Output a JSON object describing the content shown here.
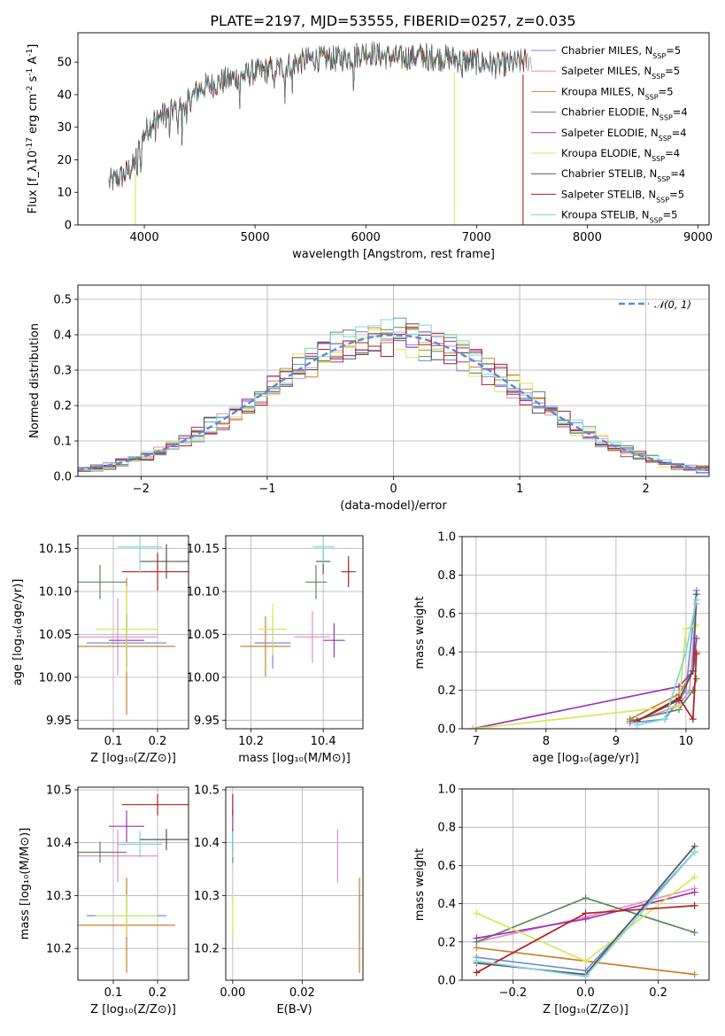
{
  "title": "PLATE=2197, MJD=53555, FIBERID=0257, z=0.035",
  "colors": {
    "Chabrier MILES": "#6f8fd8",
    "Salpeter MILES": "#e88cc5",
    "Kroupa MILES": "#c9822c",
    "Chabrier ELODIE": "#5a8a5a",
    "Salpeter ELODIE": "#9b35b5",
    "Kroupa ELODIE": "#d6e85a",
    "Chabrier STELIB": "#555555",
    "Salpeter STELIB": "#b41e1e",
    "Kroupa STELIB": "#7fd6dc",
    "normal": "#5b88d6"
  },
  "chart_data": [
    {
      "id": "spectrum",
      "type": "line",
      "xlabel": "wavelength [Angstrom, rest frame]",
      "ylabel": "Flux [f_λ10^-17 erg cm^-2 s^-1 A^-1]",
      "xlim": [
        3400,
        9100
      ],
      "ylim": [
        0,
        59
      ],
      "xticks": [
        "4000",
        "5000",
        "6000",
        "7000",
        "8000",
        "9000"
      ],
      "yticks": [
        "0",
        "10",
        "20",
        "30",
        "40",
        "50"
      ],
      "legend_position": "right",
      "series": [
        {
          "name": "Chabrier MILES",
          "nssp": "5"
        },
        {
          "name": "Salpeter MILES",
          "nssp": "5"
        },
        {
          "name": "Kroupa MILES",
          "nssp": "5"
        },
        {
          "name": "Chabrier ELODIE",
          "nssp": "4"
        },
        {
          "name": "Salpeter ELODIE",
          "nssp": "4"
        },
        {
          "name": "Kroupa ELODIE",
          "nssp": "4"
        },
        {
          "name": "Chabrier STELIB",
          "nssp": "4"
        },
        {
          "name": "Salpeter STELIB",
          "nssp": "5"
        },
        {
          "name": "Kroupa STELIB",
          "nssp": "5"
        }
      ],
      "continuum": {
        "x": [
          3680,
          3800,
          3900,
          4000,
          4100,
          4200,
          4300,
          4400,
          4500,
          4700,
          5000,
          5200,
          5500,
          5800,
          6000,
          6300,
          6500,
          6800,
          7000,
          7200,
          7400,
          7500
        ],
        "y": [
          13,
          15,
          18,
          28,
          33,
          34,
          36,
          38,
          42,
          44,
          47,
          48,
          51,
          51,
          53,
          51,
          52,
          51,
          50,
          49,
          50,
          51
        ]
      },
      "model_ends": {
        "Chabrier ELODIE": 7450,
        "Kroupa ELODIE": 6800,
        "Salpeter ELODIE": 6800,
        "Salpeter STELIB": 7450,
        "Chabrier STELIB": 7400,
        "Kroupa STELIB": 7400,
        "Chabrier MILES": 7400,
        "Salpeter MILES": 7400,
        "Kroupa MILES": 7450
      },
      "drops": [
        {
          "x": 3920,
          "series": "Kroupa ELODIE"
        },
        {
          "x": 6800,
          "series": "Kroupa ELODIE"
        },
        {
          "x": 7420,
          "series": "Salpeter STELIB"
        }
      ]
    },
    {
      "id": "residuals",
      "type": "histogram",
      "xlabel": "(data-model)/error",
      "ylabel": "Normed distribution",
      "xlim": [
        -2.5,
        2.5
      ],
      "ylim": [
        0,
        0.54
      ],
      "xticks": [
        "−2",
        "−1",
        "0",
        "1",
        "2"
      ],
      "yticks": [
        "0.0",
        "0.1",
        "0.2",
        "0.3",
        "0.4",
        "0.5"
      ],
      "grid": true,
      "legend_position": "top-right",
      "legend_label": "𝒩(0, 1)",
      "bin_width": 0.1,
      "reference_curve": "standard normal"
    },
    {
      "id": "age-vs-Z",
      "type": "scatter",
      "xlabel": "Z [log10(Z/Z⊙)]",
      "ylabel": "age  [log10(age/yr)]",
      "xlim": [
        0.02,
        0.27
      ],
      "ylim": [
        9.94,
        10.165
      ],
      "xticks": [
        "0.1",
        "0.2"
      ],
      "yticks": [
        "9.95",
        "10.00",
        "10.05",
        "10.10",
        "10.15"
      ],
      "grid": true,
      "points": [
        {
          "series": "Chabrier MILES",
          "x": 0.13,
          "y": 10.04,
          "xerr": 0.09,
          "yerr": 0.035
        },
        {
          "series": "Salpeter MILES",
          "x": 0.11,
          "y": 10.047,
          "xerr": 0.09,
          "yerr": 0.045
        },
        {
          "series": "Kroupa MILES",
          "x": 0.13,
          "y": 10.036,
          "xerr": 0.11,
          "yerr": 0.08
        },
        {
          "series": "Chabrier ELODIE",
          "x": 0.07,
          "y": 10.111,
          "xerr": 0.06,
          "yerr": 0.02
        },
        {
          "series": "Salpeter ELODIE",
          "x": 0.13,
          "y": 10.043,
          "xerr": 0.04,
          "yerr": 0.03
        },
        {
          "series": "Kroupa ELODIE",
          "x": 0.13,
          "y": 10.056,
          "xerr": 0.07,
          "yerr": 0.05
        },
        {
          "series": "Chabrier STELIB",
          "x": 0.22,
          "y": 10.135,
          "xerr": 0.06,
          "yerr": 0.02
        },
        {
          "series": "Salpeter STELIB",
          "x": 0.2,
          "y": 10.123,
          "xerr": 0.08,
          "yerr": 0.022
        },
        {
          "series": "Kroupa STELIB",
          "x": 0.16,
          "y": 10.152,
          "xerr": 0.05,
          "yerr": 0.03
        }
      ]
    },
    {
      "id": "age-vs-mass",
      "type": "scatter",
      "xlabel": "mass [log10(M/M⊙)]",
      "xlim": [
        10.13,
        10.51
      ],
      "ylim": [
        9.94,
        10.165
      ],
      "xticks": [
        "10.2",
        "10.4"
      ],
      "yticks": [
        "9.95",
        "10.00",
        "10.05",
        "10.10",
        "10.15"
      ],
      "grid": true,
      "points": [
        {
          "series": "Chabrier MILES",
          "x": 10.26,
          "y": 10.04,
          "xerr": 0.05,
          "yerr": 0.03
        },
        {
          "series": "Salpeter MILES",
          "x": 10.37,
          "y": 10.047,
          "xerr": 0.05,
          "yerr": 0.03
        },
        {
          "series": "Kroupa MILES",
          "x": 10.24,
          "y": 10.036,
          "xerr": 0.07,
          "yerr": 0.035
        },
        {
          "series": "Chabrier ELODIE",
          "x": 10.38,
          "y": 10.111,
          "xerr": 0.03,
          "yerr": 0.02
        },
        {
          "series": "Salpeter ELODIE",
          "x": 10.43,
          "y": 10.043,
          "xerr": 0.03,
          "yerr": 0.02
        },
        {
          "series": "Kroupa ELODIE",
          "x": 10.26,
          "y": 10.056,
          "xerr": 0.04,
          "yerr": 0.03
        },
        {
          "series": "Chabrier STELIB",
          "x": 10.4,
          "y": 10.135,
          "xerr": 0.02,
          "yerr": 0.015
        },
        {
          "series": "Salpeter STELIB",
          "x": 10.47,
          "y": 10.123,
          "xerr": 0.02,
          "yerr": 0.018
        },
        {
          "series": "Kroupa STELIB",
          "x": 10.4,
          "y": 10.152,
          "xerr": 0.03,
          "yerr": 0.02
        }
      ]
    },
    {
      "id": "weight-vs-age",
      "type": "line",
      "xlabel": "age  [log10(age/yr)]",
      "ylabel": "mass weight",
      "xlim": [
        6.8,
        10.33
      ],
      "ylim": [
        0,
        1
      ],
      "xticks": [
        "7",
        "8",
        "9",
        "10"
      ],
      "yticks": [
        "0.0",
        "0.2",
        "0.4",
        "0.6",
        "0.8",
        "1.0"
      ],
      "grid": true,
      "series": [
        {
          "name": "Chabrier MILES",
          "x": [
            9.2,
            9.7,
            10.0,
            10.15
          ],
          "y": [
            0.03,
            0.05,
            0.2,
            0.72
          ]
        },
        {
          "name": "Salpeter MILES",
          "x": [
            9.2,
            9.9,
            10.05,
            10.15
          ],
          "y": [
            0.03,
            0.12,
            0.2,
            0.65
          ]
        },
        {
          "name": "Kroupa MILES",
          "x": [
            9.2,
            9.9,
            10.1,
            10.15
          ],
          "y": [
            0.05,
            0.18,
            0.3,
            0.4
          ]
        },
        {
          "name": "Chabrier ELODIE",
          "x": [
            9.2,
            9.9,
            10.1,
            10.15
          ],
          "y": [
            0.04,
            0.1,
            0.2,
            0.26
          ]
        },
        {
          "name": "Salpeter ELODIE",
          "x": [
            6.95,
            9.9,
            10.1,
            10.15
          ],
          "y": [
            0.0,
            0.22,
            0.3,
            0.47
          ]
        },
        {
          "name": "Kroupa ELODIE",
          "x": [
            6.95,
            9.9,
            10.0,
            10.15
          ],
          "y": [
            0.0,
            0.12,
            0.52,
            0.54
          ]
        },
        {
          "name": "Chabrier STELIB",
          "x": [
            9.3,
            9.9,
            10.1,
            10.15
          ],
          "y": [
            0.04,
            0.15,
            0.3,
            0.7
          ]
        },
        {
          "name": "Salpeter STELIB",
          "x": [
            9.3,
            9.9,
            10.1,
            10.15
          ],
          "y": [
            0.04,
            0.16,
            0.05,
            0.39
          ]
        },
        {
          "name": "Kroupa STELIB",
          "x": [
            9.3,
            9.7,
            10.0,
            10.15
          ],
          "y": [
            0.02,
            0.05,
            0.4,
            0.67
          ]
        }
      ]
    },
    {
      "id": "mass-vs-Z",
      "type": "scatter",
      "xlabel": "Z [log10(Z/Z⊙)]",
      "ylabel": "mass [log10(M/M⊙)]",
      "xlim": [
        0.02,
        0.27
      ],
      "ylim": [
        10.14,
        10.505
      ],
      "xticks": [
        "0.1",
        "0.2"
      ],
      "yticks": [
        "10.2",
        "10.3",
        "10.4",
        "10.5"
      ],
      "grid": true,
      "points": [
        {
          "series": "Chabrier MILES",
          "x": 0.13,
          "y": 10.262,
          "xerr": 0.09,
          "yerr": 0.05
        },
        {
          "series": "Salpeter MILES",
          "x": 0.11,
          "y": 10.375,
          "xerr": 0.09,
          "yerr": 0.05
        },
        {
          "series": "Kroupa MILES",
          "x": 0.13,
          "y": 10.244,
          "xerr": 0.11,
          "yerr": 0.09
        },
        {
          "series": "Chabrier ELODIE",
          "x": 0.07,
          "y": 10.382,
          "xerr": 0.06,
          "yerr": 0.02
        },
        {
          "series": "Salpeter ELODIE",
          "x": 0.13,
          "y": 10.431,
          "xerr": 0.04,
          "yerr": 0.03
        },
        {
          "series": "Kroupa ELODIE",
          "x": 0.13,
          "y": 10.262,
          "xerr": 0.07,
          "yerr": 0.04
        },
        {
          "series": "Chabrier STELIB",
          "x": 0.22,
          "y": 10.406,
          "xerr": 0.06,
          "yerr": 0.02
        },
        {
          "series": "Salpeter STELIB",
          "x": 0.2,
          "y": 10.472,
          "xerr": 0.08,
          "yerr": 0.02
        },
        {
          "series": "Kroupa STELIB",
          "x": 0.16,
          "y": 10.397,
          "xerr": 0.05,
          "yerr": 0.025
        }
      ]
    },
    {
      "id": "mass-vs-EBV",
      "type": "scatter",
      "xlabel": "E(B-V)",
      "xlim": [
        -0.002,
        0.0375
      ],
      "ylim": [
        10.14,
        10.505
      ],
      "xticks": [
        "0.00",
        "0.02"
      ],
      "yticks": [
        "10.2",
        "10.3",
        "10.4",
        "10.5"
      ],
      "grid": true,
      "points": [
        {
          "series": "Chabrier MILES",
          "x": 0.0365,
          "y": 10.262,
          "yerr": 0.05
        },
        {
          "series": "Salpeter MILES",
          "x": 0.0302,
          "y": 10.375,
          "yerr": 0.05
        },
        {
          "series": "Kroupa MILES",
          "x": 0.0365,
          "y": 10.244,
          "yerr": 0.09
        },
        {
          "series": "Chabrier ELODIE",
          "x": 0.0,
          "y": 10.382,
          "yerr": 0.02
        },
        {
          "series": "Salpeter ELODIE",
          "x": 0.0,
          "y": 10.431,
          "yerr": 0.03
        },
        {
          "series": "Kroupa ELODIE",
          "x": 0.0,
          "y": 10.262,
          "yerr": 0.04
        },
        {
          "series": "Chabrier STELIB",
          "x": 0.0,
          "y": 10.406,
          "yerr": 0.02
        },
        {
          "series": "Salpeter STELIB",
          "x": 0.0,
          "y": 10.472,
          "yerr": 0.02
        },
        {
          "series": "Kroupa STELIB",
          "x": 0.0,
          "y": 10.397,
          "yerr": 0.025
        }
      ]
    },
    {
      "id": "weight-vs-Z",
      "type": "line",
      "xlabel": "Z [log10(Z/Z⊙)]",
      "ylabel": "mass weight",
      "xlim": [
        -0.34,
        0.34
      ],
      "ylim": [
        0,
        1
      ],
      "xticks": [
        "−0.2",
        "0.0",
        "0.2"
      ],
      "yticks": [
        "0.0",
        "0.2",
        "0.4",
        "0.6",
        "0.8",
        "1.0"
      ],
      "grid": true,
      "series": [
        {
          "name": "Chabrier MILES",
          "x": [
            -0.3,
            0.0,
            0.3
          ],
          "y": [
            0.12,
            0.05,
            0.67
          ]
        },
        {
          "name": "Salpeter MILES",
          "x": [
            -0.3,
            0.0,
            0.3
          ],
          "y": [
            0.2,
            0.33,
            0.48
          ]
        },
        {
          "name": "Kroupa MILES",
          "x": [
            -0.3,
            0.0,
            0.3
          ],
          "y": [
            0.17,
            0.1,
            0.03
          ]
        },
        {
          "name": "Chabrier ELODIE",
          "x": [
            -0.3,
            0.0,
            0.3
          ],
          "y": [
            0.2,
            0.43,
            0.25
          ]
        },
        {
          "name": "Salpeter ELODIE",
          "x": [
            -0.3,
            0.0,
            0.3
          ],
          "y": [
            0.22,
            0.32,
            0.46
          ]
        },
        {
          "name": "Kroupa ELODIE",
          "x": [
            -0.3,
            0.0,
            0.3
          ],
          "y": [
            0.35,
            0.1,
            0.54
          ]
        },
        {
          "name": "Chabrier STELIB",
          "x": [
            -0.3,
            0.0,
            0.3
          ],
          "y": [
            0.09,
            0.03,
            0.7
          ]
        },
        {
          "name": "Salpeter STELIB",
          "x": [
            -0.3,
            0.0,
            0.3
          ],
          "y": [
            0.04,
            0.35,
            0.39
          ]
        },
        {
          "name": "Kroupa STELIB",
          "x": [
            -0.3,
            0.0,
            0.3
          ],
          "y": [
            0.1,
            0.02,
            0.67
          ]
        }
      ]
    }
  ]
}
